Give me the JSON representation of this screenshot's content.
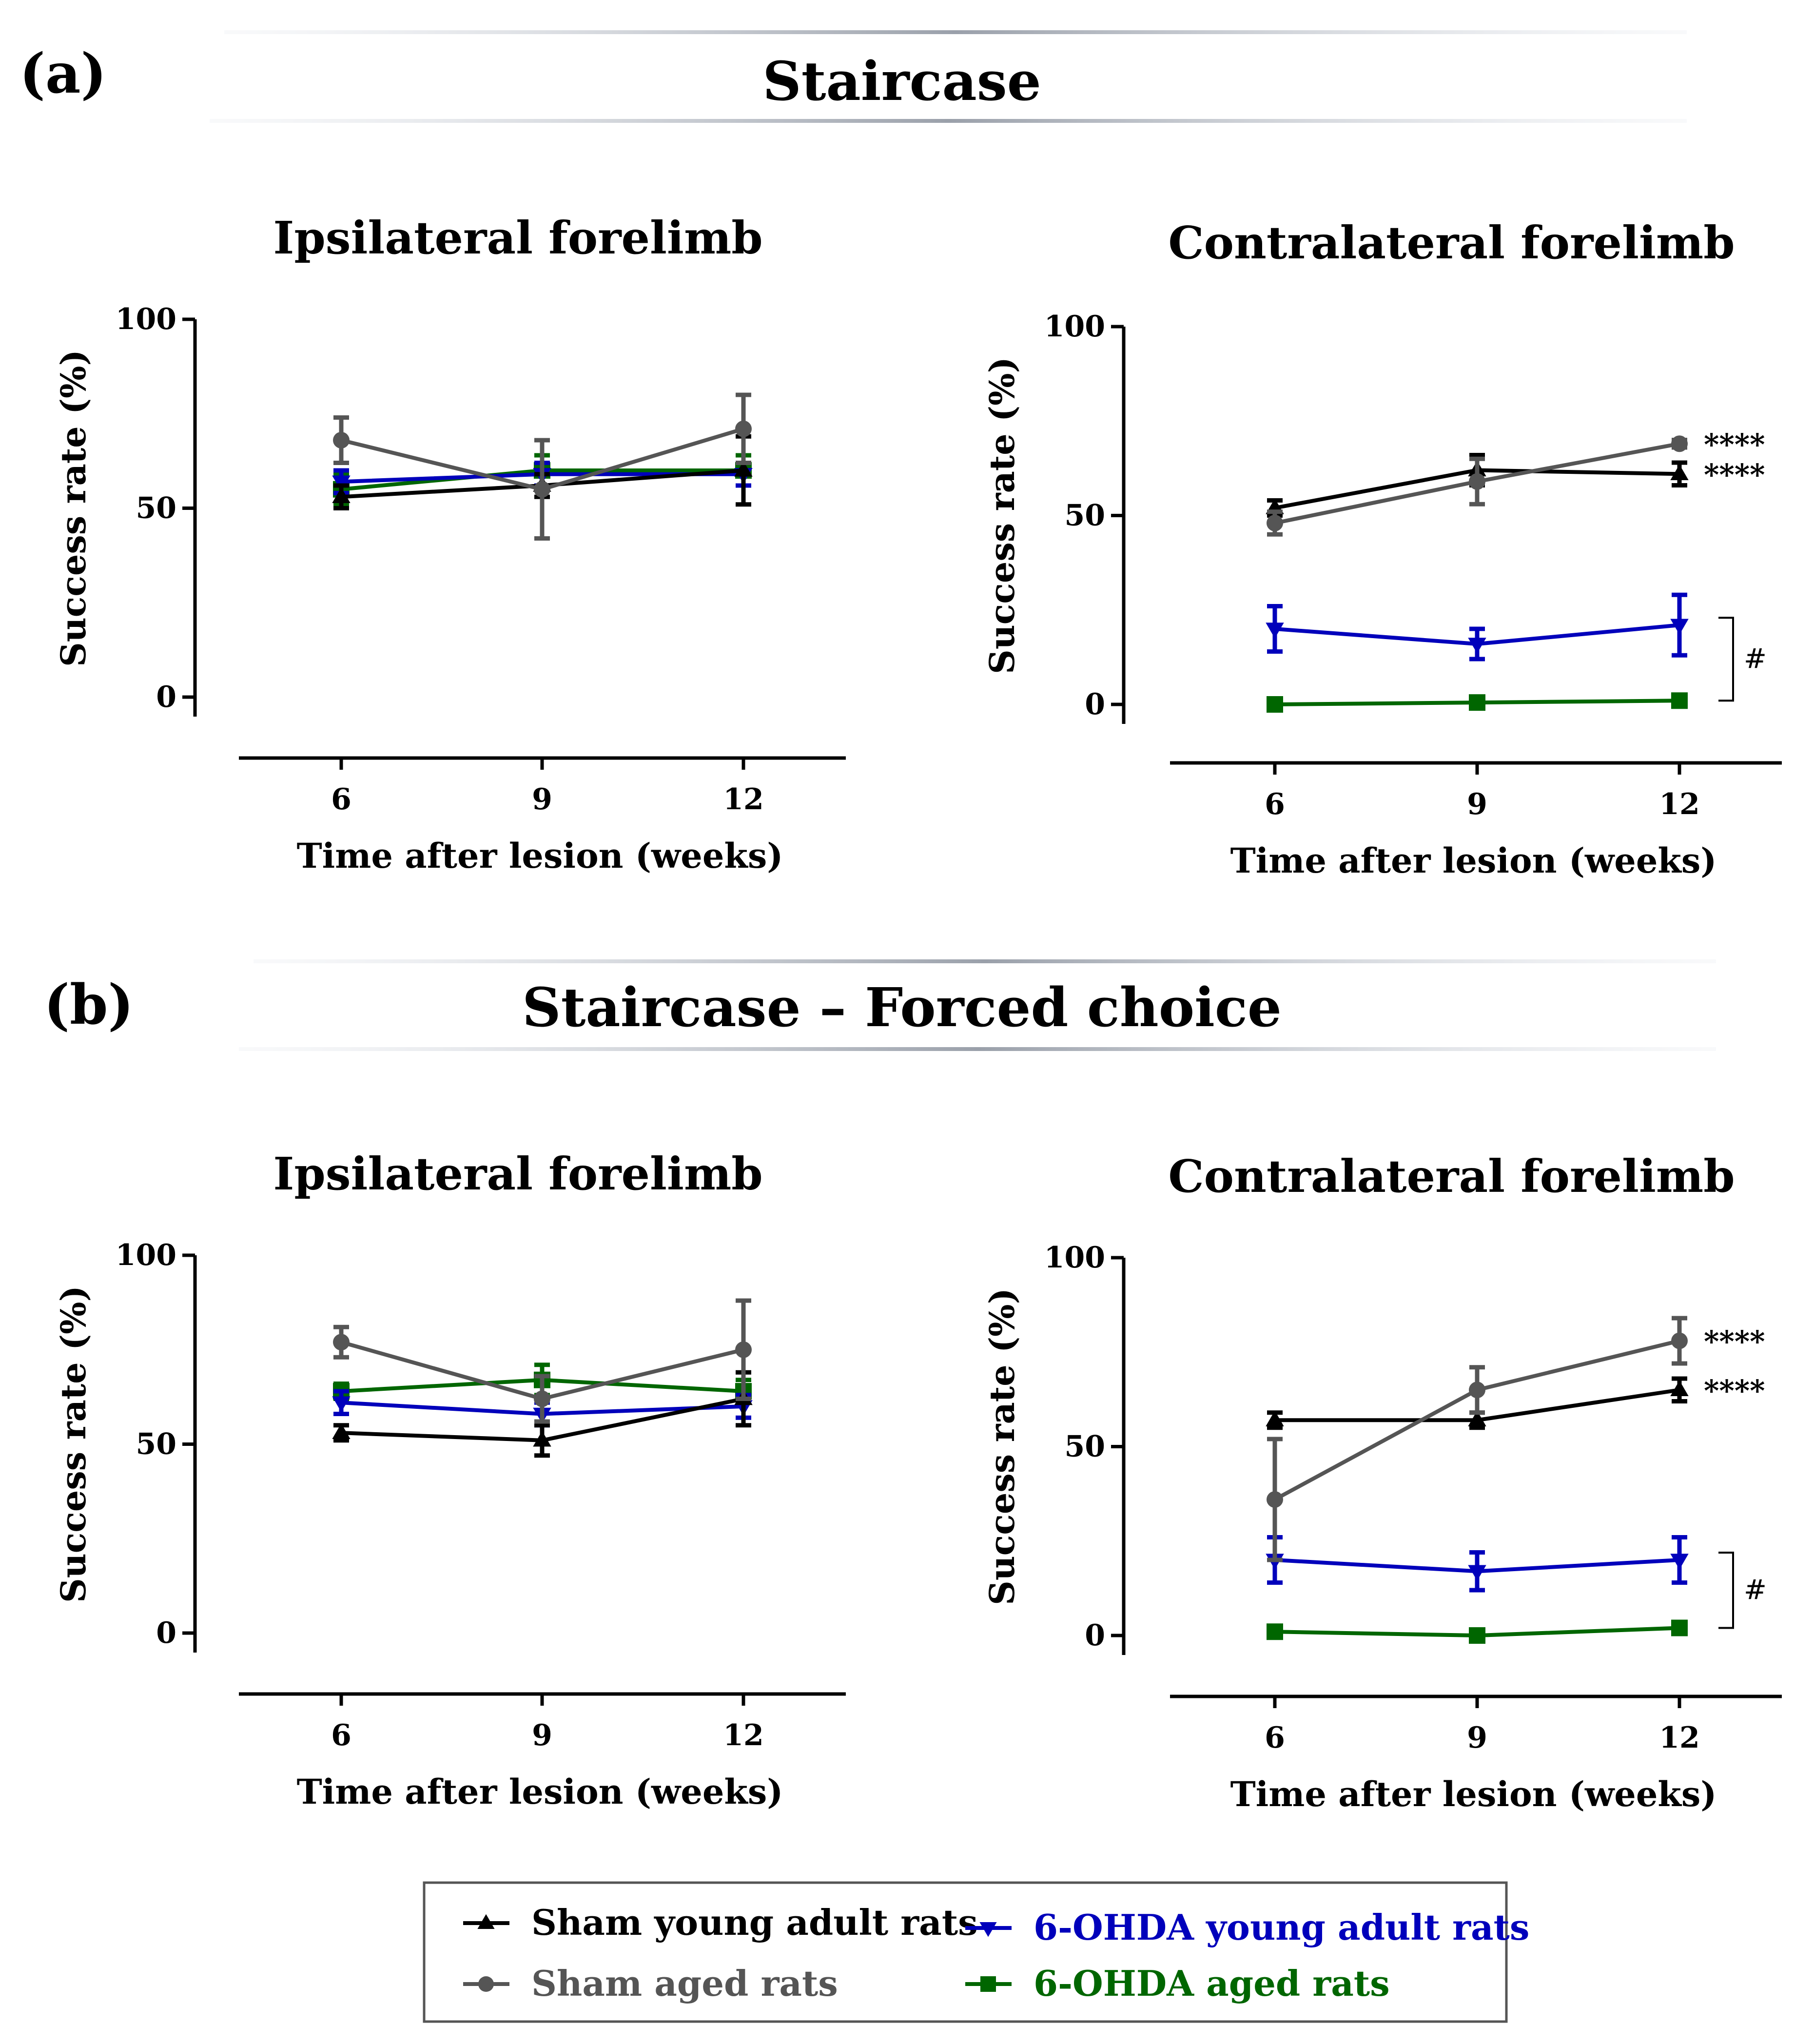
{
  "figure": {
    "panel_a_label": "(a)",
    "panel_a_title": "Staircase",
    "panel_b_label": "(b)",
    "panel_b_title": "Staircase – Forced choice"
  },
  "series_styles": [
    {
      "name": "Sham young adult rats",
      "color": "#000000",
      "marker": "triangle-up"
    },
    {
      "name": "Sham aged rats",
      "color": "#555555",
      "marker": "circle"
    },
    {
      "name": "6-OHDA young adult rats",
      "color": "#0000bb",
      "marker": "triangle-down"
    },
    {
      "name": "6-OHDA aged rats",
      "color": "#006600",
      "marker": "square"
    }
  ],
  "legend": {
    "items": [
      "Sham young adult rats",
      "Sham aged rats",
      "6-OHDA young adult rats",
      "6-OHDA aged rats"
    ]
  },
  "chart_data": [
    {
      "id": "a_ipsi",
      "type": "line",
      "title": "Ipsilateral forelimb",
      "xlabel": "Time after lesion (weeks)",
      "ylabel": "Success rate (%)",
      "x": [
        6,
        9,
        12
      ],
      "ylim": [
        0,
        100
      ],
      "yticks": [
        0,
        50,
        100
      ],
      "series": [
        {
          "name": "Sham young adult rats",
          "values": [
            53,
            56,
            60
          ],
          "errors": [
            3,
            3,
            9
          ]
        },
        {
          "name": "Sham aged rats",
          "values": [
            68,
            55,
            71
          ],
          "errors": [
            6,
            13,
            9
          ]
        },
        {
          "name": "6-OHDA young adult rats",
          "values": [
            57,
            59,
            59
          ],
          "errors": [
            3,
            3,
            3
          ]
        },
        {
          "name": "6-OHDA aged rats",
          "values": [
            55,
            60,
            60
          ],
          "errors": [
            4,
            4,
            4
          ]
        }
      ],
      "significance": [],
      "hash": ""
    },
    {
      "id": "a_contra",
      "type": "line",
      "title": "Contralateral forelimb",
      "xlabel": "Time after lesion (weeks)",
      "ylabel": "Success rate (%)",
      "x": [
        6,
        9,
        12
      ],
      "ylim": [
        0,
        100
      ],
      "yticks": [
        0,
        50,
        100
      ],
      "series": [
        {
          "name": "Sham young adult rats",
          "values": [
            52,
            62,
            61
          ],
          "errors": [
            2,
            4,
            3
          ]
        },
        {
          "name": "Sham aged rats",
          "values": [
            48,
            59,
            69
          ],
          "errors": [
            3,
            6,
            1
          ]
        },
        {
          "name": "6-OHDA young adult rats",
          "values": [
            20,
            16,
            21
          ],
          "errors": [
            6,
            4,
            8
          ]
        },
        {
          "name": "6-OHDA aged rats",
          "values": [
            0,
            0.5,
            1
          ],
          "errors": [
            0.5,
            0.5,
            0.5
          ]
        }
      ],
      "significance": [
        {
          "series": "Sham aged rats",
          "label": "****"
        },
        {
          "series": "Sham young adult rats",
          "label": "****"
        }
      ],
      "hash": "#"
    },
    {
      "id": "b_ipsi",
      "type": "line",
      "title": "Ipsilateral forelimb",
      "xlabel": "Time after lesion (weeks)",
      "ylabel": "Success rate (%)",
      "x": [
        6,
        9,
        12
      ],
      "ylim": [
        0,
        100
      ],
      "yticks": [
        0,
        50,
        100
      ],
      "series": [
        {
          "name": "Sham young adult rats",
          "values": [
            53,
            51,
            62
          ],
          "errors": [
            2,
            4,
            7
          ]
        },
        {
          "name": "Sham aged rats",
          "values": [
            77,
            62,
            75
          ],
          "errors": [
            4,
            6,
            13
          ]
        },
        {
          "name": "6-OHDA young adult rats",
          "values": [
            61,
            58,
            60
          ],
          "errors": [
            3,
            3,
            3
          ]
        },
        {
          "name": "6-OHDA aged rats",
          "values": [
            64,
            67,
            64
          ],
          "errors": [
            2,
            4,
            3
          ]
        }
      ],
      "significance": [],
      "hash": ""
    },
    {
      "id": "b_contra",
      "type": "line",
      "title": "Contralateral forelimb",
      "xlabel": "Time after lesion (weeks)",
      "ylabel": "Success rate (%)",
      "x": [
        6,
        9,
        12
      ],
      "ylim": [
        0,
        100
      ],
      "yticks": [
        0,
        50,
        100
      ],
      "series": [
        {
          "name": "Sham young adult rats",
          "values": [
            57,
            57,
            65
          ],
          "errors": [
            2,
            2,
            3
          ]
        },
        {
          "name": "Sham aged rats",
          "values": [
            36,
            65,
            78
          ],
          "errors": [
            16,
            6,
            6
          ]
        },
        {
          "name": "6-OHDA young adult rats",
          "values": [
            20,
            17,
            20
          ],
          "errors": [
            6,
            5,
            6
          ]
        },
        {
          "name": "6-OHDA aged rats",
          "values": [
            1,
            0,
            2
          ],
          "errors": [
            0.5,
            0.5,
            1
          ]
        }
      ],
      "significance": [
        {
          "series": "Sham aged rats",
          "label": "****"
        },
        {
          "series": "Sham young adult rats",
          "label": "****"
        }
      ],
      "hash": "#"
    }
  ]
}
